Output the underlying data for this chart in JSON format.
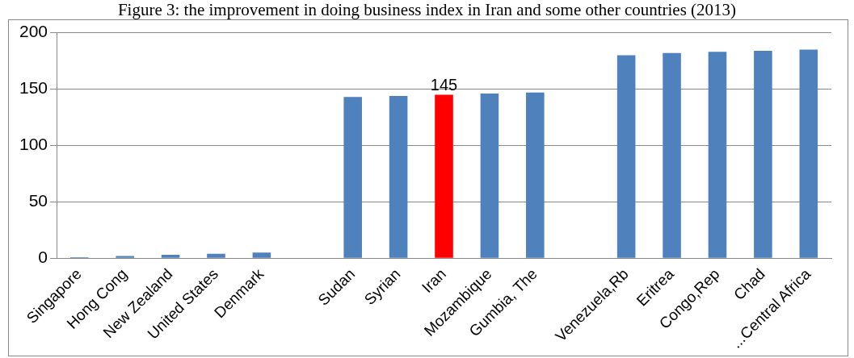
{
  "chart_data": {
    "type": "bar",
    "title": "Figure 3: the improvement in doing business index in Iran and some other countries (2013)",
    "categories": [
      "Singapore",
      "Hong Cong",
      "New Zealand",
      "United States",
      "Denmark",
      null,
      "Sudan",
      "Syrian",
      "Iran",
      "Mozambique",
      "Gumbia, The",
      null,
      "Venezuela,Rb",
      "Eritrea",
      "Congo,Rep",
      "Chad",
      "...Central Africa"
    ],
    "values": [
      1,
      2,
      3,
      4,
      5,
      null,
      143,
      144,
      145,
      146,
      147,
      null,
      180,
      182,
      183,
      184,
      185
    ],
    "colors": [
      "#4f81bd",
      "#4f81bd",
      "#4f81bd",
      "#4f81bd",
      "#4f81bd",
      "#4f81bd",
      "#4f81bd",
      "#4f81bd",
      "#ff0000",
      "#4f81bd",
      "#4f81bd",
      "#4f81bd",
      "#4f81bd",
      "#4f81bd",
      "#4f81bd",
      "#4f81bd",
      "#4f81bd"
    ],
    "value_labels": [
      null,
      null,
      null,
      null,
      null,
      null,
      null,
      null,
      "145",
      null,
      null,
      null,
      null,
      null,
      null,
      null,
      null
    ],
    "ylim": [
      0,
      200
    ],
    "yticks": [
      0,
      50,
      100,
      150,
      200
    ],
    "grid": "y",
    "legend": false
  }
}
